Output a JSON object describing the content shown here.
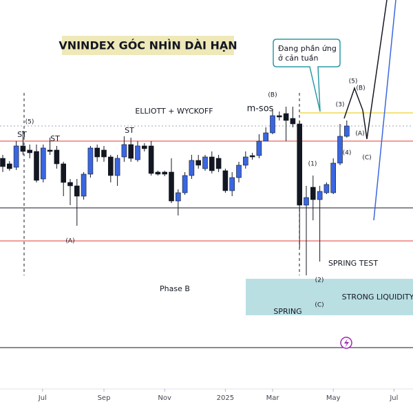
{
  "chart_data": {
    "type": "candlestick",
    "title": "VNINDEX GÓC NHÌN DÀI HẠN",
    "open": [
      370,
      362,
      357,
      388,
      382,
      380,
      340,
      382,
      382,
      362,
      335,
      330,
      315,
      347,
      385,
      382,
      372,
      345,
      372,
      390,
      368,
      388,
      388,
      350,
      350,
      350,
      308,
      320,
      345,
      367,
      355,
      372,
      370,
      352,
      323,
      342,
      360,
      374,
      374,
      395,
      407,
      432,
      435,
      428,
      420,
      302,
      328,
      310,
      320,
      320,
      363,
      402
    ],
    "high": [
      375,
      366,
      395,
      410,
      390,
      390,
      390,
      400,
      388,
      365,
      340,
      340,
      350,
      388,
      390,
      388,
      375,
      375,
      402,
      400,
      395,
      392,
      395,
      352,
      352,
      370,
      325,
      350,
      375,
      375,
      375,
      380,
      375,
      355,
      350,
      365,
      380,
      378,
      405,
      415,
      440,
      438,
      445,
      445,
      425,
      330,
      345,
      330,
      335,
      370,
      420,
      425
    ],
    "low": [
      350,
      352,
      353,
      375,
      370,
      335,
      335,
      375,
      355,
      315,
      302,
      272,
      310,
      342,
      365,
      365,
      335,
      330,
      365,
      365,
      365,
      380,
      345,
      345,
      344,
      305,
      287,
      317,
      340,
      355,
      352,
      348,
      350,
      320,
      315,
      335,
      355,
      368,
      370,
      395,
      405,
      425,
      395,
      415,
      240,
      200,
      280,
      220,
      318,
      318,
      360,
      400
    ],
    "close": [
      358,
      355,
      388,
      380,
      378,
      338,
      385,
      380,
      362,
      335,
      330,
      315,
      347,
      385,
      372,
      372,
      345,
      370,
      390,
      370,
      388,
      384,
      348,
      347,
      347,
      308,
      320,
      345,
      367,
      360,
      372,
      352,
      355,
      323,
      342,
      360,
      372,
      372,
      395,
      407,
      432,
      430,
      425,
      420,
      302,
      313,
      310,
      322,
      332,
      363,
      402,
      417
    ],
    "up_color": "#3a66e0",
    "down_color": "#131722",
    "ylim": [
      0,
      600
    ],
    "xlim": [
      -0.4,
      61
    ],
    "xticks": [
      {
        "value": 5.9,
        "label": "Jul"
      },
      {
        "value": 15,
        "label": "Sep"
      },
      {
        "value": 24,
        "label": "Nov"
      },
      {
        "value": 33,
        "label": "2025"
      },
      {
        "value": 40,
        "label": "Mar"
      },
      {
        "value": 49,
        "label": "May"
      },
      {
        "value": 58,
        "label": "Jul"
      }
    ],
    "levels": [
      {
        "value": 395,
        "color": "#e53935"
      },
      {
        "value": 250,
        "color": "#e53935"
      },
      {
        "value": 298,
        "color": "#131722"
      },
      {
        "value": 95,
        "color": "#131722"
      },
      {
        "value": 436,
        "color": "#f3e37a"
      },
      {
        "value": 417,
        "color": "#9aa3b5"
      }
    ],
    "annotations": [
      "ELLIOTT + WYCKOFF",
      "m-sos",
      "(B)",
      "(5)",
      "ST",
      "ST",
      "ST",
      "(A)",
      "(1)",
      "(2)",
      "(C)",
      "(3)",
      "(4)",
      "(5)",
      "(B)",
      "(A)",
      "(C)",
      "SPRING TEST",
      "SPRING",
      "Phase B",
      "STRONG LIQUIDITY"
    ],
    "callout": [
      "Đang phần ứng",
      "ở cản tuần"
    ]
  }
}
